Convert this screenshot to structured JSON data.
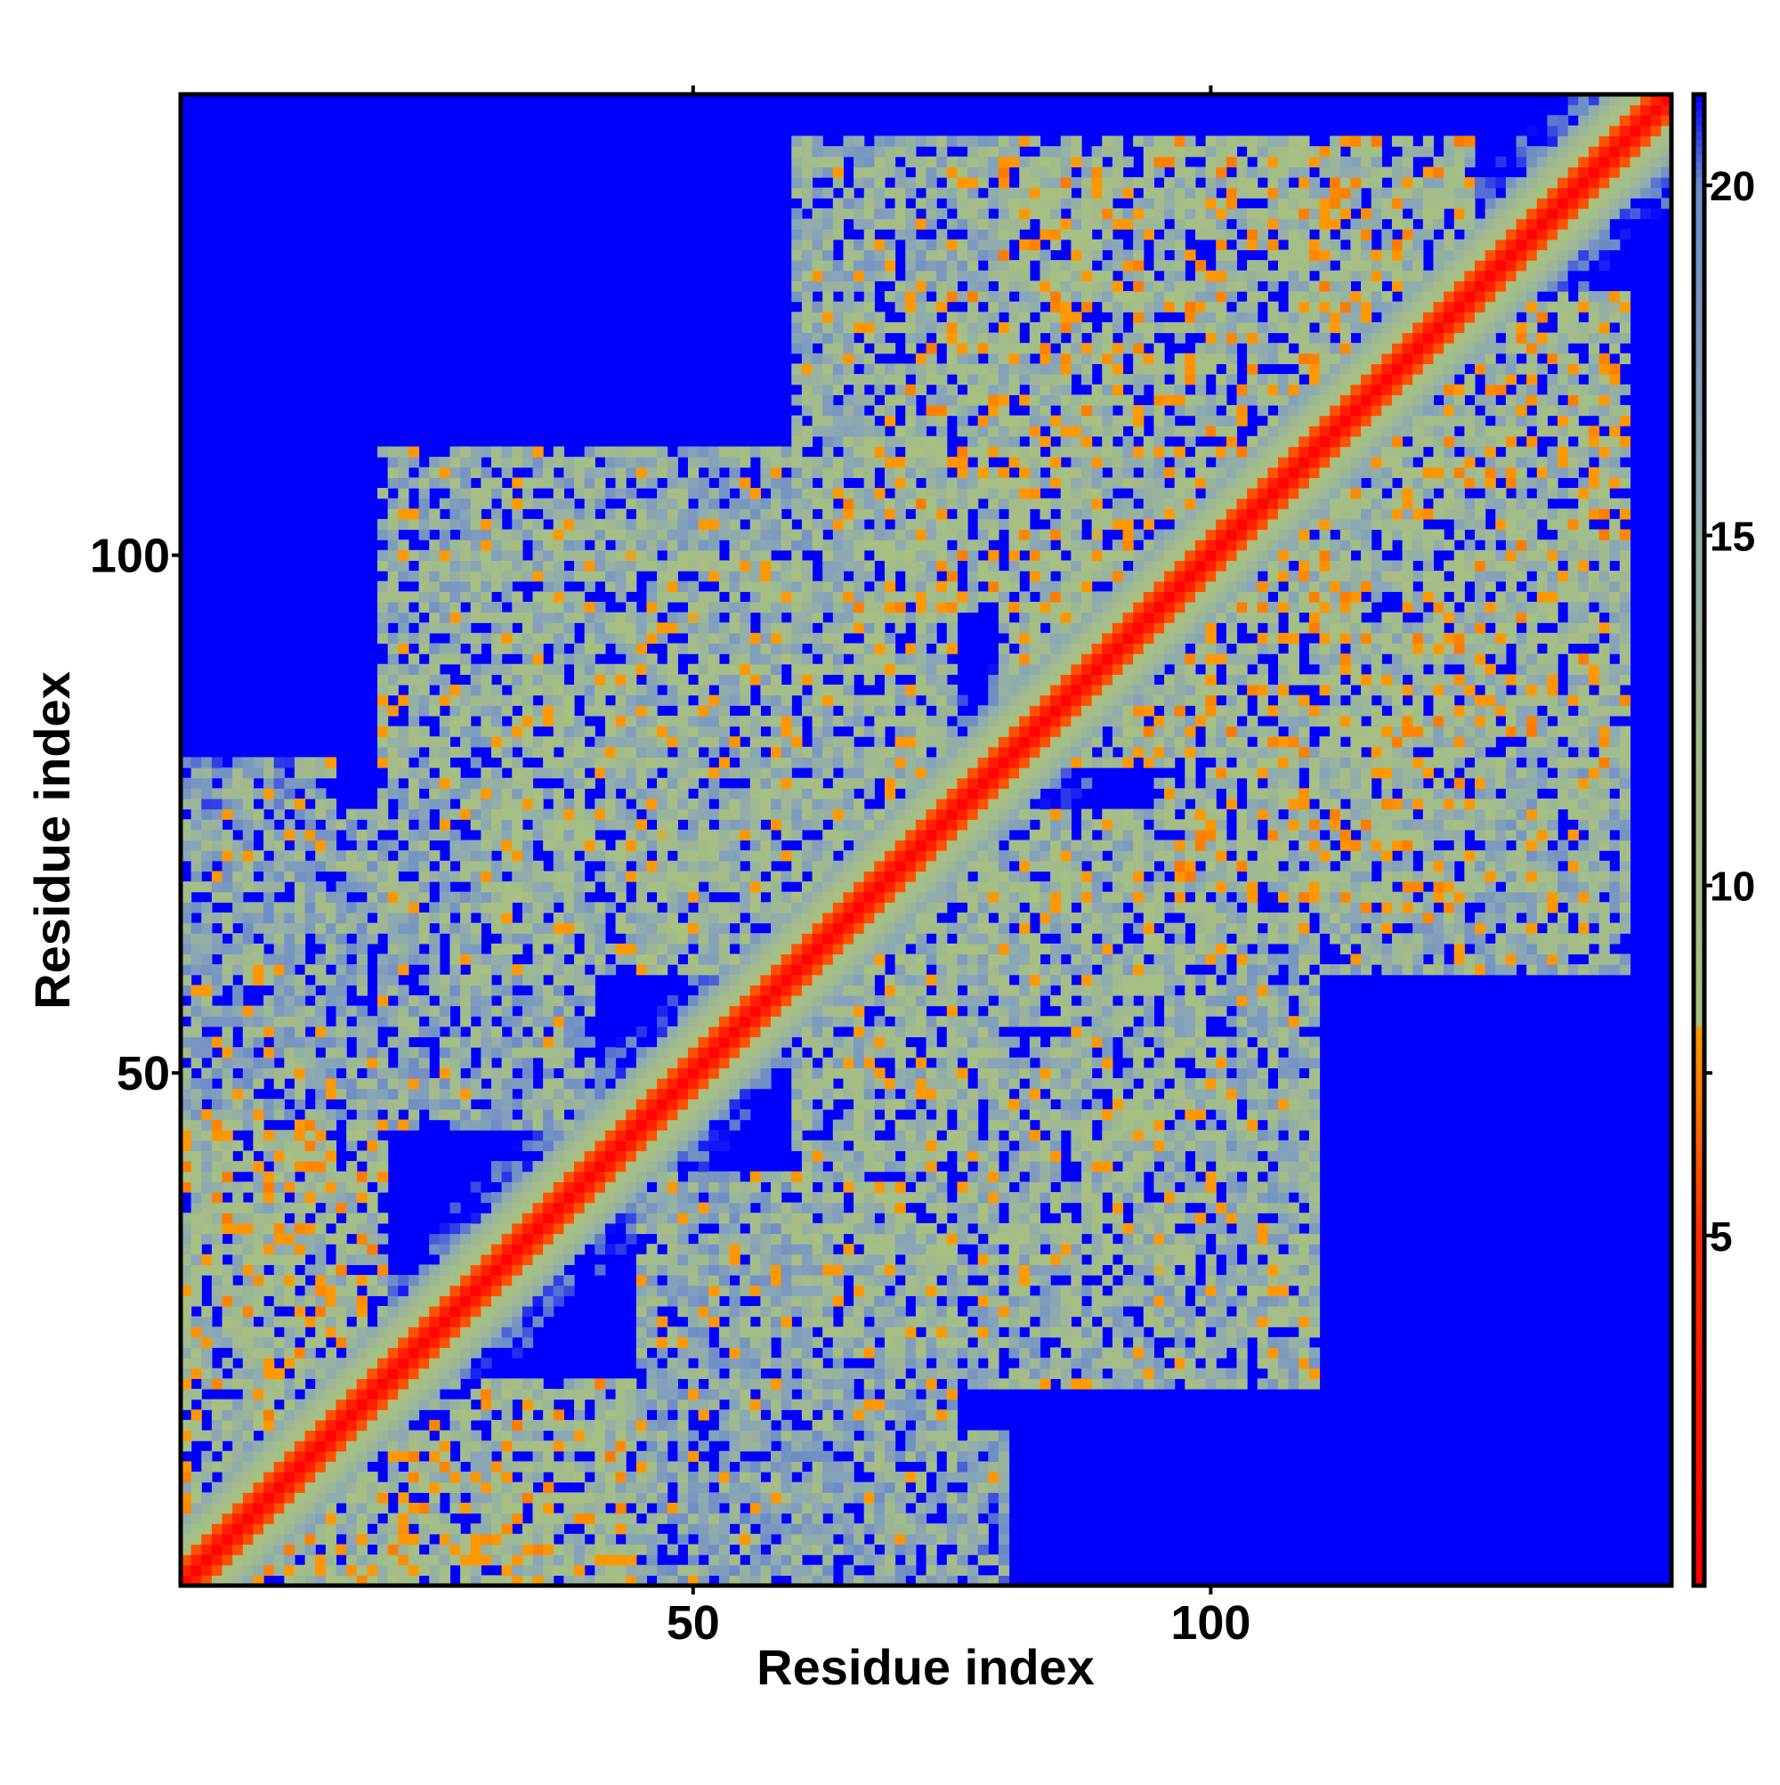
{
  "chart_data": {
    "type": "heatmap",
    "title": "",
    "xlabel": "Residue index",
    "ylabel": "Residue index",
    "xlim": [
      1,
      144
    ],
    "ylim": [
      1,
      144
    ],
    "x_ticks": [
      50,
      100
    ],
    "y_ticks": [
      50,
      100
    ],
    "top_ticks": [
      50,
      100
    ],
    "right_ticks": [
      50
    ],
    "colorbar": {
      "range": [
        0,
        21.3
      ],
      "ticks": [
        5,
        10,
        15,
        20
      ],
      "stops": [
        {
          "value": 0.0,
          "color": "#ff0000"
        },
        {
          "value": 5.0,
          "color": "#ff2a00"
        },
        {
          "value": 7.0,
          "color": "#ff7a00"
        },
        {
          "value": 8.0,
          "color": "#ff9a00"
        },
        {
          "value": 8.01,
          "color": "#a8c080"
        },
        {
          "value": 12.0,
          "color": "#a2bc8c"
        },
        {
          "value": 16.0,
          "color": "#8aa6b6"
        },
        {
          "value": 20.0,
          "color": "#6e8cc8"
        },
        {
          "value": 21.3,
          "color": "#0000ff"
        }
      ]
    },
    "cells": {
      "description_units": "Matrix of pairwise residue distances (symmetric), values in colorbar units",
      "diagonal": [
        {
          "offset": 0,
          "value": 0.5
        },
        {
          "offset": 1,
          "value": 3.8
        },
        {
          "offset": 2,
          "value": 6.0
        },
        {
          "offset": 3,
          "value": 8.5
        },
        {
          "offset": 4,
          "value": 11.0
        },
        {
          "offset": 5,
          "value": 13.0
        },
        {
          "offset": 6,
          "value": 15.0
        }
      ],
      "background_value": 21.3,
      "contact_regions": [
        {
          "x": [
            1,
            20
          ],
          "y": [
            1,
            45
          ],
          "value": 12
        },
        {
          "x": [
            1,
            15
          ],
          "y": [
            55,
            80
          ],
          "value": 16
        },
        {
          "x": [
            20,
            70
          ],
          "y": [
            60,
            110
          ],
          "value": 14
        },
        {
          "x": [
            45,
            75
          ],
          "y": [
            1,
            40
          ],
          "value": 15
        },
        {
          "x": [
            60,
            100
          ],
          "y": [
            30,
            75
          ],
          "value": 13
        },
        {
          "x": [
            80,
            125
          ],
          "y": [
            85,
            140
          ],
          "value": 12
        },
        {
          "x": [
            105,
            140
          ],
          "y": [
            60,
            110
          ],
          "value": 14
        },
        {
          "x": [
            65,
            95
          ],
          "y": [
            95,
            125
          ],
          "value": 12
        }
      ]
    }
  }
}
